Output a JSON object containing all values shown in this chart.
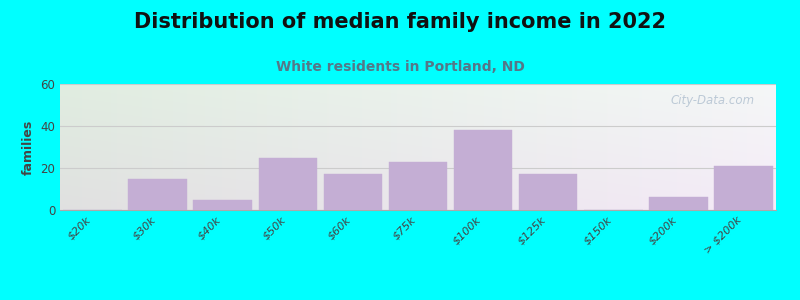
{
  "title": "Distribution of median family income in 2022",
  "subtitle": "White residents in Portland, ND",
  "ylabel": "families",
  "categories": [
    "$20k",
    "$30k",
    "$40k",
    "$50k",
    "$60k",
    "$75k",
    "$100k",
    "$125k",
    "$150k",
    "$200k",
    "> $200k"
  ],
  "values": [
    0,
    15,
    5,
    25,
    17,
    23,
    38,
    17,
    0,
    6,
    21
  ],
  "bar_color": "#c4aed4",
  "bar_edge_color": "#c4aed4",
  "ylim": [
    0,
    60
  ],
  "yticks": [
    0,
    20,
    40,
    60
  ],
  "background_color": "#00ffff",
  "plot_bg_color": "#f0f5ee",
  "grid_color": "#cccccc",
  "title_fontsize": 15,
  "subtitle_fontsize": 10,
  "subtitle_color": "#557788",
  "watermark": "City-Data.com"
}
